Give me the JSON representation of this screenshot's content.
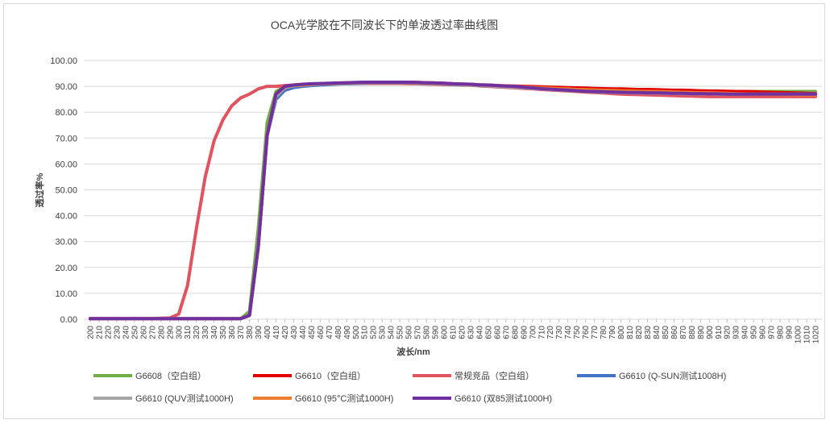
{
  "chart_data": {
    "type": "line",
    "title": "OCA光学胶在不同波长下的单波透过率曲线图",
    "xlabel": "波长/nm",
    "ylabel": "透过率%",
    "ylim": [
      0,
      100
    ],
    "yticks": [
      "0.00",
      "10.00",
      "20.00",
      "30.00",
      "40.00",
      "50.00",
      "60.00",
      "70.00",
      "80.00",
      "90.00",
      "100.00"
    ],
    "x": [
      200,
      210,
      220,
      230,
      240,
      250,
      260,
      270,
      280,
      290,
      300,
      310,
      320,
      330,
      340,
      350,
      360,
      370,
      380,
      390,
      400,
      410,
      420,
      430,
      440,
      450,
      460,
      470,
      480,
      490,
      500,
      510,
      520,
      530,
      540,
      550,
      560,
      570,
      580,
      590,
      600,
      610,
      620,
      630,
      640,
      650,
      660,
      670,
      680,
      690,
      700,
      710,
      720,
      730,
      740,
      750,
      760,
      770,
      780,
      790,
      800,
      810,
      820,
      830,
      840,
      850,
      860,
      870,
      880,
      890,
      900,
      910,
      920,
      930,
      940,
      950,
      960,
      970,
      980,
      990,
      1000,
      1010,
      1020
    ],
    "grid": true,
    "legend_position": "bottom",
    "series": [
      {
        "name": "G6608（空白组）",
        "color": "#70ad47",
        "values": [
          0.2,
          0.2,
          0.2,
          0.2,
          0.2,
          0.2,
          0.2,
          0.2,
          0.2,
          0.2,
          0.2,
          0.2,
          0.2,
          0.2,
          0.2,
          0.2,
          0.2,
          0.2,
          3,
          35,
          76,
          88,
          90,
          90.5,
          90.7,
          90.8,
          91,
          91.1,
          91.2,
          91.3,
          91.4,
          91.5,
          91.5,
          91.5,
          91.5,
          91.5,
          91.5,
          91.4,
          91.3,
          91.2,
          91,
          90.9,
          90.8,
          90.6,
          90.5,
          90.3,
          90.2,
          90,
          89.8,
          89.6,
          89.4,
          89.2,
          89,
          88.9,
          88.8,
          88.7,
          88.6,
          88.5,
          88.4,
          88.4,
          88.3,
          88.3,
          88.2,
          88.2,
          88.2,
          88.1,
          88.1,
          88.1,
          88.1,
          88,
          88,
          88,
          88,
          88,
          88,
          88,
          88,
          88,
          88,
          88,
          88,
          88,
          88
        ]
      },
      {
        "name": "G6610（空白组）",
        "color": "#e00000",
        "values": [
          0.2,
          0.2,
          0.2,
          0.2,
          0.2,
          0.2,
          0.2,
          0.2,
          0.2,
          0.2,
          0.2,
          0.2,
          0.2,
          0.2,
          0.2,
          0.2,
          0.2,
          0.2,
          1.5,
          28,
          71,
          87,
          90,
          90.5,
          90.7,
          90.9,
          91,
          91.1,
          91.2,
          91.3,
          91.4,
          91.5,
          91.5,
          91.6,
          91.6,
          91.6,
          91.6,
          91.5,
          91.4,
          91.3,
          91.2,
          91,
          90.9,
          90.8,
          90.6,
          90.5,
          90.3,
          90.2,
          90.1,
          90,
          89.9,
          89.8,
          89.7,
          89.6,
          89.5,
          89.4,
          89.3,
          89.2,
          89.1,
          89,
          89,
          88.9,
          88.8,
          88.8,
          88.7,
          88.6,
          88.5,
          88.5,
          88.4,
          88.3,
          88.2,
          88.2,
          88.1,
          88,
          88,
          87.9,
          87.8,
          87.7,
          87.6,
          87.5,
          87.4,
          87.3,
          87.2
        ]
      },
      {
        "name": "常规竞品（空白组）",
        "color": "#e0535f",
        "values": [
          0.3,
          0.3,
          0.3,
          0.3,
          0.3,
          0.3,
          0.3,
          0.3,
          0.4,
          0.5,
          2,
          13,
          35,
          55,
          69,
          77,
          82.5,
          85.5,
          87,
          89,
          90,
          90,
          90.3,
          90.5,
          90.6,
          90.7,
          90.8,
          90.9,
          91,
          91,
          91.1,
          91.1,
          91.1,
          91.1,
          91.1,
          91.1,
          91,
          91,
          90.9,
          90.8,
          90.7,
          90.6,
          90.5,
          90.4,
          90.2,
          90,
          89.8,
          89.6,
          89.4,
          89.2,
          89,
          88.8,
          88.6,
          88.4,
          88.2,
          88,
          87.8,
          87.6,
          87.4,
          87.2,
          87,
          86.9,
          86.8,
          86.7,
          86.6,
          86.5,
          86.4,
          86.3,
          86.2,
          86.1,
          86,
          86,
          86,
          86,
          86,
          86,
          86,
          86,
          86,
          86,
          86,
          86,
          86
        ]
      },
      {
        "name": "G6610 (Q-SUN测试1008H)",
        "color": "#4472c4",
        "values": [
          0.2,
          0.2,
          0.2,
          0.2,
          0.2,
          0.2,
          0.2,
          0.2,
          0.2,
          0.2,
          0.2,
          0.2,
          0.2,
          0.2,
          0.2,
          0.2,
          0.2,
          0.2,
          1.5,
          28,
          71,
          85,
          88.5,
          89.5,
          90,
          90.3,
          90.5,
          90.7,
          90.9,
          91,
          91.1,
          91.2,
          91.3,
          91.3,
          91.3,
          91.3,
          91.3,
          91.2,
          91.1,
          91,
          90.9,
          90.7,
          90.6,
          90.5,
          90.3,
          90.2,
          90,
          89.8,
          89.7,
          89.5,
          89.3,
          89.1,
          88.9,
          88.7,
          88.5,
          88.3,
          88.1,
          87.9,
          87.8,
          87.7,
          87.6,
          87.5,
          87.5,
          87.4,
          87.4,
          87.3,
          87.3,
          87.2,
          87.2,
          87.1,
          87.1,
          87,
          87,
          87,
          87,
          87,
          87,
          87,
          87,
          87,
          87,
          87,
          87
        ]
      },
      {
        "name": "G6610 (QUV测试1000H)",
        "color": "#a5a5a5",
        "values": [
          0.2,
          0.2,
          0.2,
          0.2,
          0.2,
          0.2,
          0.2,
          0.2,
          0.2,
          0.2,
          0.2,
          0.2,
          0.2,
          0.2,
          0.2,
          0.2,
          0.2,
          0.2,
          1.5,
          28,
          71,
          86,
          89.5,
          90.2,
          90.5,
          90.7,
          90.9,
          91,
          91.1,
          91.2,
          91.3,
          91.4,
          91.4,
          91.4,
          91.4,
          91.4,
          91.4,
          91.3,
          91.2,
          91.1,
          91,
          90.8,
          90.7,
          90.5,
          90.4,
          90.2,
          90,
          89.8,
          89.6,
          89.4,
          89.2,
          89,
          88.8,
          88.6,
          88.4,
          88.2,
          88,
          87.9,
          87.8,
          87.7,
          87.6,
          87.5,
          87.5,
          87.4,
          87.4,
          87.3,
          87.3,
          87.2,
          87.2,
          87.1,
          87.1,
          87,
          87,
          87,
          87,
          87,
          87,
          87,
          87,
          87,
          87,
          87,
          87
        ]
      },
      {
        "name": "G6610 (95°C测试1000H)",
        "color": "#ed7d31",
        "values": [
          0.2,
          0.2,
          0.2,
          0.2,
          0.2,
          0.2,
          0.2,
          0.2,
          0.2,
          0.2,
          0.2,
          0.2,
          0.2,
          0.2,
          0.2,
          0.2,
          0.2,
          0.2,
          1.5,
          28,
          71,
          87,
          89.8,
          90.4,
          90.6,
          90.8,
          91,
          91.1,
          91.2,
          91.3,
          91.4,
          91.5,
          91.5,
          91.5,
          91.5,
          91.5,
          91.5,
          91.4,
          91.3,
          91.2,
          91.1,
          91,
          90.9,
          90.7,
          90.6,
          90.4,
          90.3,
          90.1,
          90,
          89.8,
          89.6,
          89.4,
          89.3,
          89.1,
          89,
          88.8,
          88.7,
          88.6,
          88.5,
          88.4,
          88.3,
          88.2,
          88.1,
          88,
          88,
          87.9,
          87.8,
          87.7,
          87.6,
          87.5,
          87.5,
          87.4,
          87.3,
          87.2,
          87.1,
          87,
          86.9,
          86.9,
          86.8,
          86.8,
          86.7,
          86.7,
          86.6
        ]
      },
      {
        "name": "G6610 (双85测试1000H)",
        "color": "#7030a0",
        "values": [
          0.2,
          0.2,
          0.2,
          0.2,
          0.2,
          0.2,
          0.2,
          0.2,
          0.2,
          0.2,
          0.2,
          0.2,
          0.2,
          0.2,
          0.2,
          0.2,
          0.2,
          0.2,
          1.5,
          28,
          71,
          87,
          90,
          90.5,
          90.8,
          91,
          91.1,
          91.2,
          91.3,
          91.4,
          91.5,
          91.6,
          91.6,
          91.6,
          91.6,
          91.6,
          91.6,
          91.5,
          91.4,
          91.3,
          91.2,
          91,
          90.9,
          90.8,
          90.6,
          90.5,
          90.3,
          90.1,
          90,
          89.7,
          89.4,
          89.1,
          88.9,
          88.7,
          88.5,
          88.3,
          88.1,
          88,
          87.9,
          87.8,
          87.7,
          87.6,
          87.6,
          87.5,
          87.5,
          87.4,
          87.3,
          87.3,
          87.2,
          87.2,
          87.1,
          87.1,
          87,
          87,
          87,
          87,
          87,
          87,
          87,
          87,
          87,
          87,
          87
        ]
      }
    ]
  }
}
